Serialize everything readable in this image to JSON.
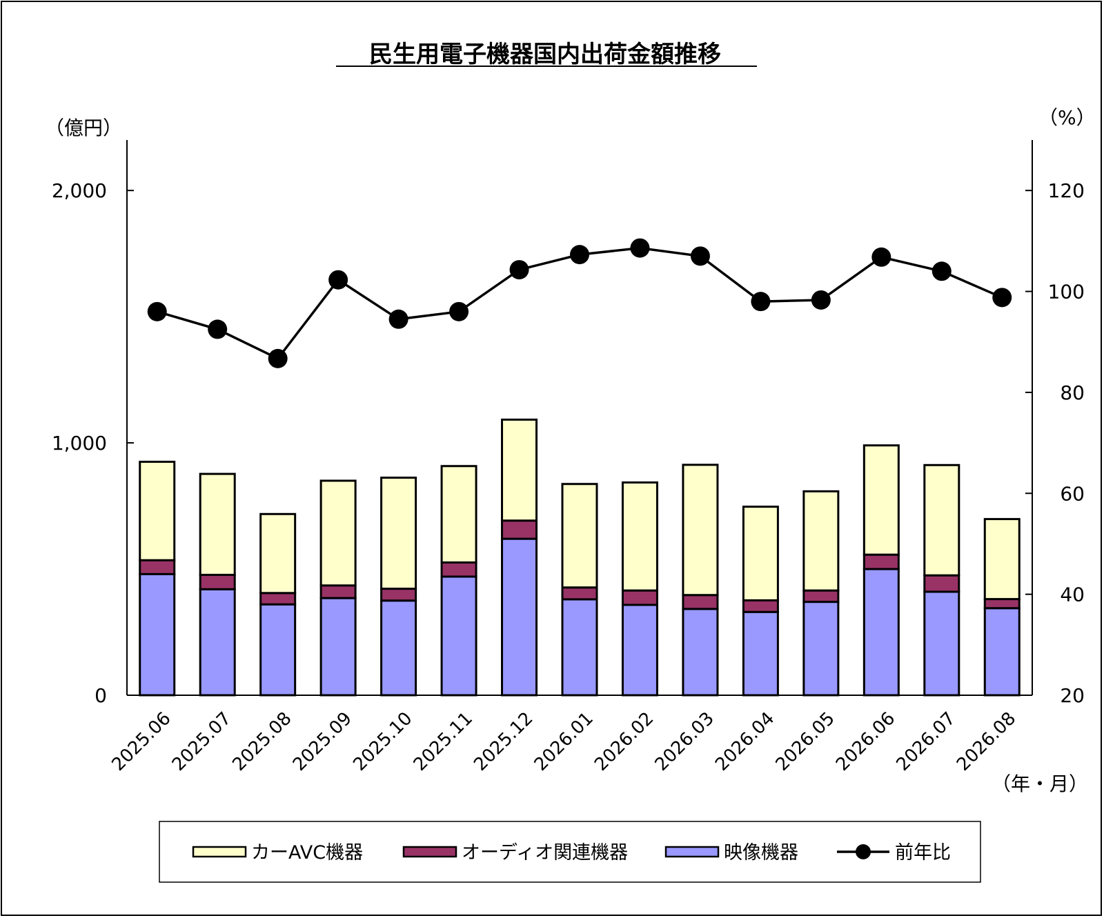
{
  "chart_data": {
    "type": "bar",
    "title": "民生用電子機器国内出荷金額推移",
    "y_unit_left": "（億円）",
    "y_unit_right": "（%）",
    "x_unit": "（年・月）",
    "ylim_left": [
      0,
      2200
    ],
    "ylim_right": [
      20,
      130
    ],
    "yticks_left": [
      {
        "value": 0,
        "label": "0"
      },
      {
        "value": 1000,
        "label": "1,000"
      },
      {
        "value": 2000,
        "label": "2,000"
      }
    ],
    "yticks_right": [
      {
        "value": 20,
        "label": "20"
      },
      {
        "value": 40,
        "label": "40"
      },
      {
        "value": 60,
        "label": "60"
      },
      {
        "value": 80,
        "label": "80"
      },
      {
        "value": 100,
        "label": "100"
      },
      {
        "value": 120,
        "label": "120"
      }
    ],
    "categories": [
      "2025.06",
      "2025.07",
      "2025.08",
      "2025.09",
      "2025.10",
      "2025.11",
      "2025.12",
      "2026.01",
      "2026.02",
      "2026.03",
      "2026.04",
      "2026.05",
      "2026.06",
      "2026.07",
      "2026.08"
    ],
    "series": [
      {
        "name": "映像機器",
        "kind": "bar",
        "color": "#9999ff",
        "values": [
          480,
          420,
          360,
          385,
          375,
          470,
          620,
          380,
          358,
          342,
          330,
          370,
          500,
          410,
          345
        ]
      },
      {
        "name": "オーディオ関連機器",
        "kind": "bar",
        "color": "#993366",
        "values": [
          55,
          57,
          45,
          50,
          47,
          56,
          72,
          47,
          57,
          55,
          46,
          45,
          57,
          65,
          36
        ]
      },
      {
        "name": "カーAVC機器",
        "kind": "bar",
        "color": "#ffffcc",
        "values": [
          390,
          400,
          313,
          415,
          440,
          382,
          400,
          410,
          428,
          516,
          371,
          393,
          433,
          437,
          317
        ]
      },
      {
        "name": "前年比",
        "kind": "line",
        "axis": "right",
        "color": "#000000",
        "values": [
          96.0,
          92.5,
          86.7,
          102.3,
          94.5,
          96.0,
          104.3,
          107.3,
          108.6,
          107.0,
          98.0,
          98.3,
          106.8,
          104.0,
          98.8
        ]
      }
    ],
    "legend_position": "bottom",
    "grid": false
  }
}
